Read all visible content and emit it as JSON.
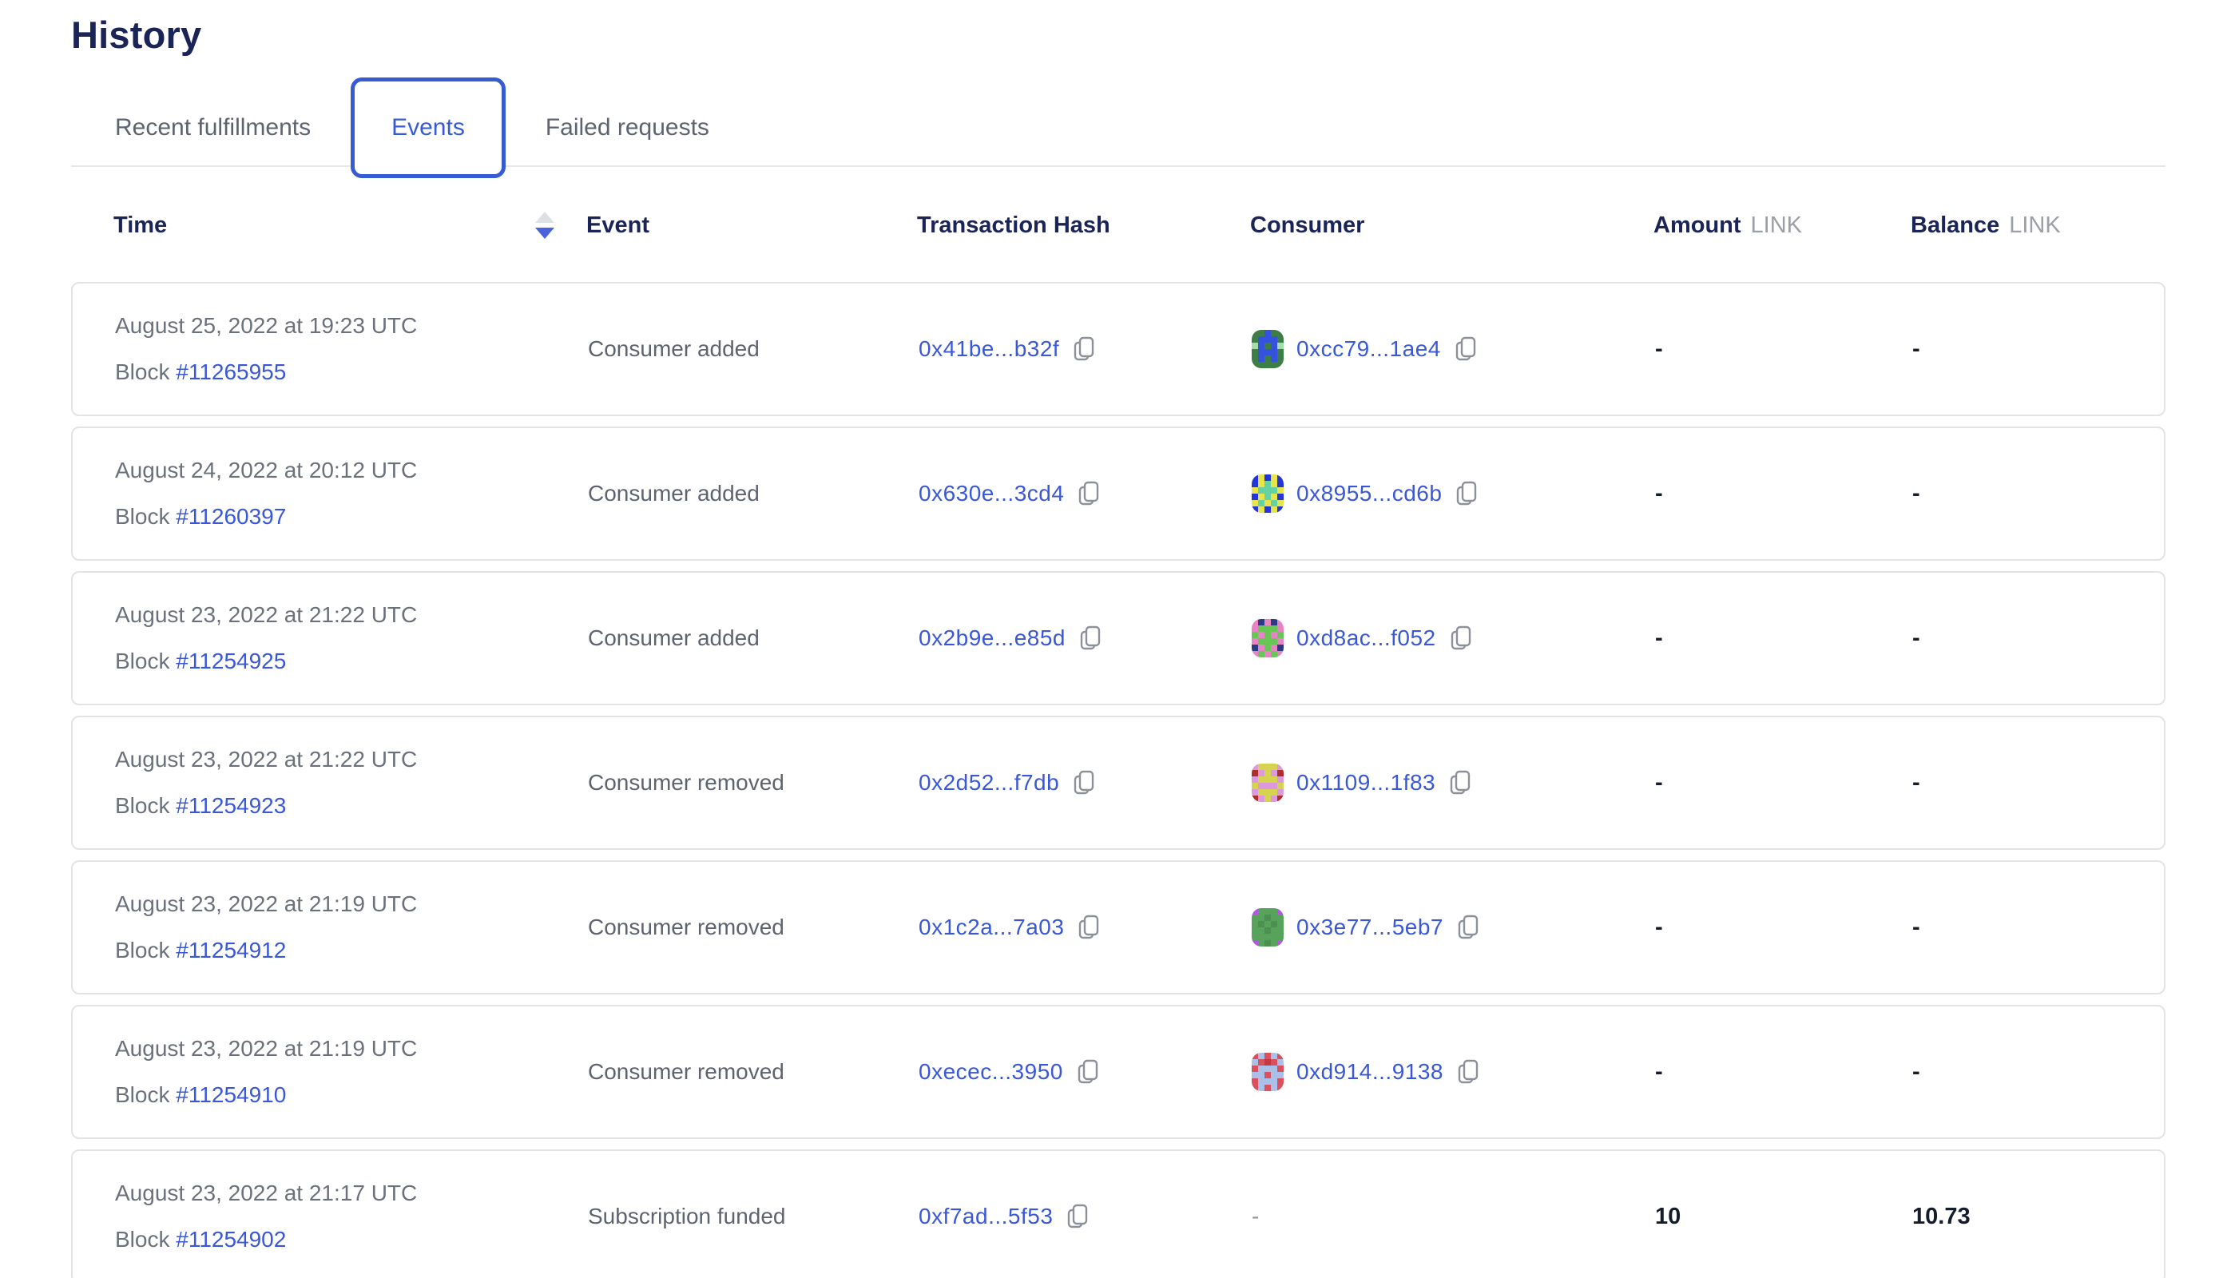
{
  "page": {
    "title": "History"
  },
  "tabs": [
    {
      "label": "Recent fulfillments",
      "active": false
    },
    {
      "label": "Events",
      "active": true
    },
    {
      "label": "Failed requests",
      "active": false
    }
  ],
  "table": {
    "headers": {
      "time": "Time",
      "event": "Event",
      "hash": "Transaction Hash",
      "consumer": "Consumer",
      "amount": "Amount",
      "balance": "Balance",
      "unit": "LINK"
    },
    "labels": {
      "block_prefix": "Block",
      "empty": "-"
    },
    "sort": {
      "column": "time",
      "direction": "descending"
    },
    "rows": [
      {
        "date": "August 25, 2022 at 19:23 UTC",
        "block": "#11265955",
        "event": "Consumer added",
        "hash": "0x41be...b32f",
        "consumer": "0xcc79...1ae4",
        "amount": "-",
        "balance": "-",
        "avatar": {
          "palette": [
            "#3d7d46",
            "#3452de",
            "#a5dcab"
          ],
          "map": [
            0,
            0,
            1,
            0,
            0,
            0,
            1,
            1,
            1,
            0,
            2,
            1,
            0,
            1,
            2,
            0,
            1,
            1,
            1,
            0,
            0,
            1,
            0,
            1,
            0,
            0,
            0,
            0,
            0,
            0
          ]
        }
      },
      {
        "date": "August 24, 2022 at 20:12 UTC",
        "block": "#11260397",
        "event": "Consumer added",
        "hash": "0x630e...3cd4",
        "consumer": "0x8955...cd6b",
        "amount": "-",
        "balance": "-",
        "avatar": {
          "palette": [
            "#2436da",
            "#e9e44c",
            "#63d3a3"
          ],
          "map": [
            0,
            1,
            0,
            1,
            0,
            0,
            1,
            2,
            1,
            0,
            1,
            2,
            2,
            2,
            1,
            0,
            1,
            2,
            1,
            0,
            1,
            2,
            1,
            2,
            1,
            0,
            1,
            0,
            1,
            0
          ]
        }
      },
      {
        "date": "August 23, 2022 at 21:22 UTC",
        "block": "#11254925",
        "event": "Consumer added",
        "hash": "0x2b9e...e85d",
        "consumer": "0xd8ac...f052",
        "amount": "-",
        "balance": "-",
        "avatar": {
          "palette": [
            "#67c655",
            "#e784c6",
            "#2b3a82"
          ],
          "map": [
            1,
            2,
            1,
            2,
            1,
            1,
            0,
            0,
            0,
            1,
            0,
            1,
            0,
            1,
            0,
            1,
            0,
            0,
            0,
            1,
            2,
            1,
            0,
            1,
            2,
            1,
            0,
            1,
            0,
            1
          ]
        }
      },
      {
        "date": "August 23, 2022 at 21:22 UTC",
        "block": "#11254923",
        "event": "Consumer removed",
        "hash": "0x2d52...f7db",
        "consumer": "0x1109...1f83",
        "amount": "-",
        "balance": "-",
        "avatar": {
          "palette": [
            "#dc99de",
            "#d6d34f",
            "#ae2f29"
          ],
          "map": [
            0,
            1,
            1,
            1,
            0,
            2,
            0,
            1,
            0,
            2,
            0,
            1,
            1,
            1,
            0,
            1,
            0,
            0,
            0,
            1,
            0,
            1,
            1,
            1,
            0,
            2,
            0,
            1,
            0,
            2
          ]
        }
      },
      {
        "date": "August 23, 2022 at 21:19 UTC",
        "block": "#11254912",
        "event": "Consumer removed",
        "hash": "0x1c2a...7a03",
        "consumer": "0x3e77...5eb7",
        "amount": "-",
        "balance": "-",
        "avatar": {
          "palette": [
            "#57a35c",
            "#b356e2",
            "#4c8f50"
          ],
          "map": [
            1,
            0,
            0,
            0,
            1,
            0,
            0,
            2,
            0,
            0,
            0,
            2,
            0,
            2,
            0,
            0,
            0,
            2,
            0,
            0,
            0,
            0,
            0,
            0,
            0,
            1,
            0,
            2,
            0,
            1
          ]
        }
      },
      {
        "date": "August 23, 2022 at 21:19 UTC",
        "block": "#11254910",
        "event": "Consumer removed",
        "hash": "0xecec...3950",
        "consumer": "0xd914...9138",
        "amount": "-",
        "balance": "-",
        "avatar": {
          "palette": [
            "#d8515c",
            "#abc0e9",
            "#c23943"
          ],
          "map": [
            0,
            1,
            0,
            1,
            0,
            1,
            0,
            2,
            0,
            1,
            0,
            1,
            1,
            1,
            0,
            1,
            1,
            0,
            1,
            1,
            0,
            1,
            1,
            1,
            0,
            0,
            1,
            0,
            1,
            0
          ]
        }
      },
      {
        "date": "August 23, 2022 at 21:17 UTC",
        "block": "#11254902",
        "event": "Subscription funded",
        "hash": "0xf7ad...5f53",
        "consumer": null,
        "amount": "10",
        "balance": "10.73",
        "avatar": null
      }
    ]
  },
  "colors": {
    "accent_blue": "#375bd2",
    "link_blue": "#3957d8",
    "heading_navy": "#1b2456",
    "text_gray": "#6a717b",
    "value_dark": "#141d2b",
    "unit_gray": "#9b9fa6",
    "card_border": "#e2e3e6",
    "sort_inactive": "#dde0e5",
    "sort_active": "#4a63dd"
  }
}
